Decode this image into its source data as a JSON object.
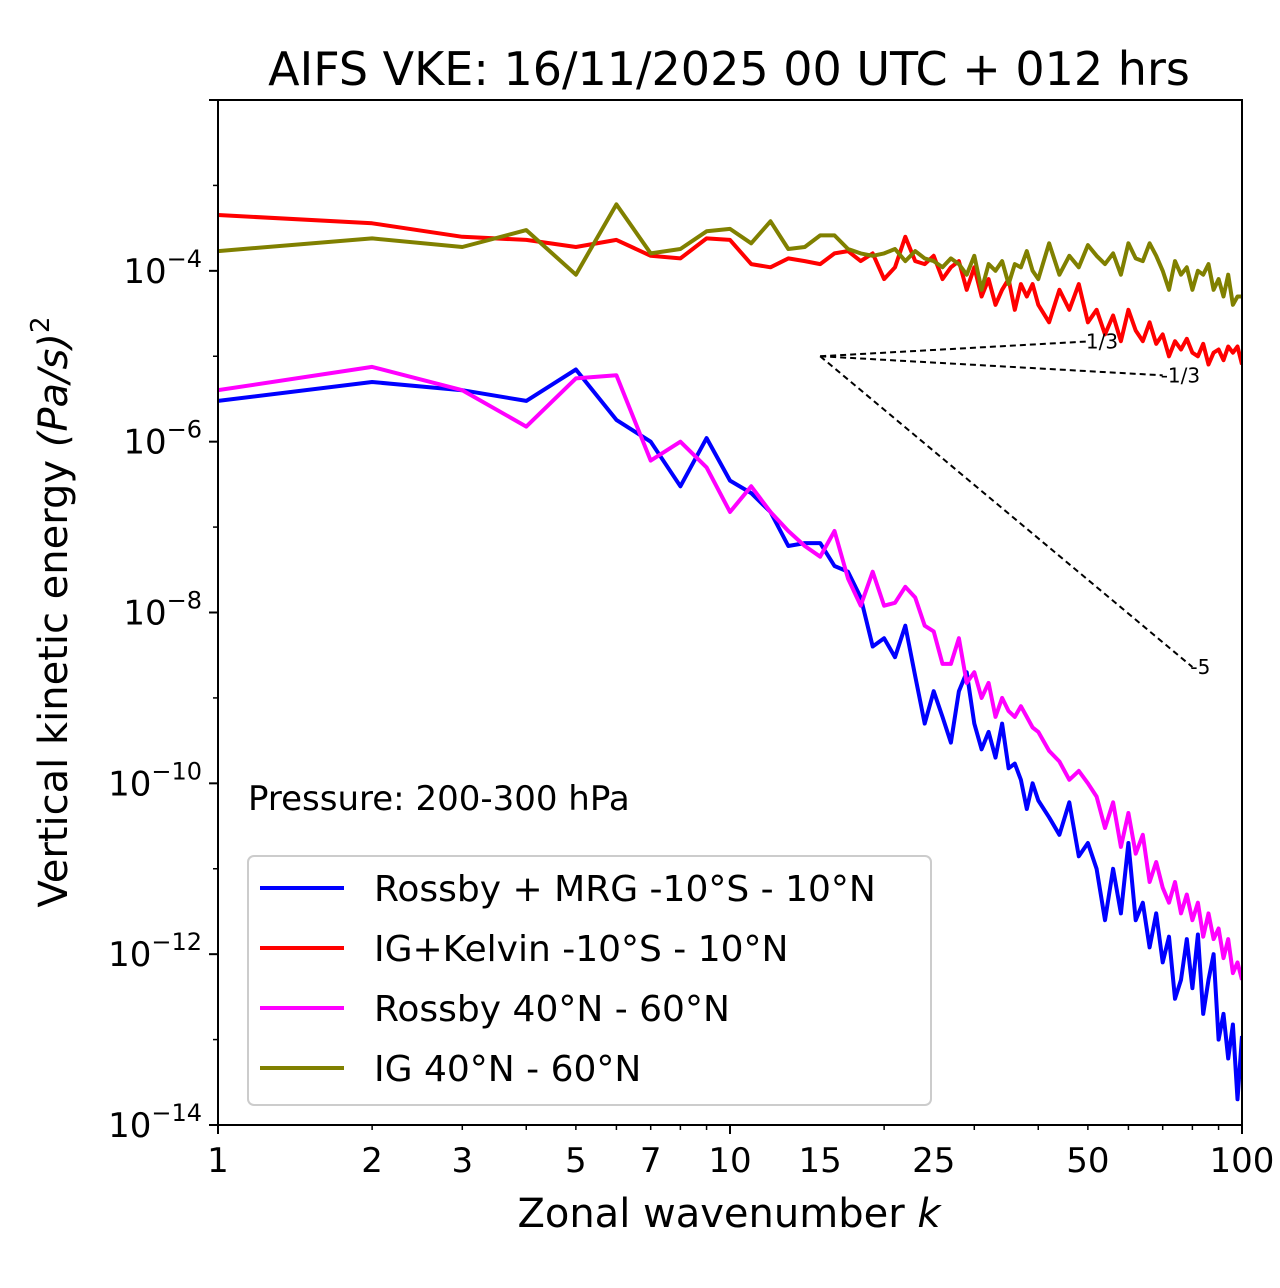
{
  "chart_data": {
    "type": "line",
    "title": "AIFS VKE: 16/11/2025 00 UTC + 012 hrs",
    "xlabel_main": "Zonal wavenumber ",
    "xlabel_italic": "k",
    "ylabel_main": "Vertical kinetic energy ",
    "ylabel_unit": "(Pa/s)",
    "ylabel_sup": "2",
    "xscale": "log",
    "yscale": "log",
    "xlim": [
      1,
      100
    ],
    "ylim": [
      1e-14,
      0.01
    ],
    "xticks": [
      {
        "value": 1,
        "label": "1"
      },
      {
        "value": 2,
        "label": "2"
      },
      {
        "value": 3,
        "label": "3"
      },
      {
        "value": 5,
        "label": "5"
      },
      {
        "value": 7,
        "label": "7"
      },
      {
        "value": 10,
        "label": "10"
      },
      {
        "value": 15,
        "label": "15"
      },
      {
        "value": 25,
        "label": "25"
      },
      {
        "value": 50,
        "label": "50"
      },
      {
        "value": 100,
        "label": "100"
      }
    ],
    "yticks": [
      {
        "value": -4,
        "base": "10",
        "exp": "−4"
      },
      {
        "value": -6,
        "base": "10",
        "exp": "−6"
      },
      {
        "value": -8,
        "base": "10",
        "exp": "−8"
      },
      {
        "value": -10,
        "base": "10",
        "exp": "−10"
      },
      {
        "value": -12,
        "base": "10",
        "exp": "−12"
      },
      {
        "value": -14,
        "base": "10",
        "exp": "−14"
      }
    ],
    "annotation": "Pressure: 200-300 hPa",
    "reference_slopes": [
      {
        "label": "1/3",
        "x0": 15,
        "y0": 1e-05,
        "x1": 50,
        "y1": 1.49e-05
      },
      {
        "label": "-1/3",
        "x0": 15,
        "y0": 1e-05,
        "x1": 70,
        "y1": 5.98e-06
      },
      {
        "label": "-5",
        "x0": 15,
        "y0": 1e-05,
        "x1": 80,
        "y1": 2.3e-09
      }
    ],
    "series": [
      {
        "name": "Rossby + MRG -10°S - 10°N",
        "color": "#0000ff",
        "x": [
          1,
          2,
          3,
          4,
          5,
          6,
          7,
          8,
          9,
          10,
          11,
          12,
          13,
          14,
          15,
          16,
          17,
          18,
          19,
          20,
          21,
          22,
          23,
          24,
          25,
          26,
          27,
          28,
          29,
          30,
          31,
          32,
          33,
          34,
          35,
          36,
          37,
          38,
          39,
          40,
          42,
          44,
          46,
          48,
          50,
          52,
          54,
          56,
          58,
          60,
          62,
          64,
          66,
          68,
          70,
          72,
          74,
          76,
          78,
          80,
          82,
          84,
          86,
          88,
          90,
          92,
          94,
          96,
          98,
          100
        ],
        "y": [
          3e-06,
          5e-06,
          4e-06,
          3e-06,
          7e-06,
          1.8e-06,
          1e-06,
          3e-07,
          1.1e-06,
          3.5e-07,
          2.5e-07,
          1.5e-07,
          6e-08,
          6.5e-08,
          6.5e-08,
          3.5e-08,
          3e-08,
          1.5e-08,
          4e-09,
          5e-09,
          3e-09,
          7e-09,
          1.8e-09,
          5e-10,
          1.2e-09,
          6e-10,
          3e-10,
          1.2e-09,
          2e-09,
          5e-10,
          2.5e-10,
          4e-10,
          2e-10,
          5e-10,
          1.5e-10,
          1.7e-10,
          1.1e-10,
          5e-11,
          1e-10,
          6.3e-11,
          4e-11,
          2.5e-11,
          6e-11,
          1.4e-11,
          2e-11,
          1e-11,
          2.5e-12,
          1e-11,
          3e-12,
          2e-11,
          2.5e-12,
          4e-12,
          1.2e-12,
          3e-12,
          8e-13,
          1.6e-12,
          3e-13,
          5e-13,
          1.5e-12,
          4e-13,
          1.7e-12,
          2e-13,
          5e-13,
          1e-12,
          1e-13,
          2e-13,
          6e-14,
          1.5e-13,
          2e-14,
          1.1e-13
        ]
      },
      {
        "name": "IG+Kelvin -10°S - 10°N",
        "color": "#ff0000",
        "x": [
          1,
          2,
          3,
          4,
          5,
          6,
          7,
          8,
          9,
          10,
          11,
          12,
          13,
          14,
          15,
          16,
          17,
          18,
          19,
          20,
          21,
          22,
          23,
          24,
          25,
          26,
          27,
          28,
          29,
          30,
          31,
          32,
          33,
          34,
          35,
          36,
          37,
          38,
          39,
          40,
          42,
          44,
          46,
          48,
          50,
          52,
          54,
          56,
          58,
          60,
          62,
          64,
          66,
          68,
          70,
          72,
          74,
          76,
          78,
          80,
          82,
          84,
          86,
          88,
          90,
          92,
          94,
          96,
          98,
          100
        ],
        "y": [
          0.00045,
          0.00036,
          0.00025,
          0.00023,
          0.00019,
          0.00023,
          0.00015,
          0.00014,
          0.00024,
          0.00023,
          0.00012,
          0.00011,
          0.00014,
          0.00013,
          0.00012,
          0.00016,
          0.00017,
          0.00013,
          0.00016,
          8e-05,
          0.00011,
          0.00025,
          0.00013,
          0.00012,
          0.00015,
          8e-05,
          0.00011,
          0.00013,
          6e-05,
          0.00011,
          5e-05,
          8e-05,
          4e-05,
          6e-05,
          8e-05,
          3.5e-05,
          7e-05,
          5e-05,
          7e-05,
          4e-05,
          2.5e-05,
          6e-05,
          3.5e-05,
          7e-05,
          2.5e-05,
          3.5e-05,
          1.8e-05,
          3e-05,
          1.5e-05,
          3.5e-05,
          2e-05,
          1.5e-05,
          2.5e-05,
          1.4e-05,
          1.8e-05,
          1e-05,
          1.5e-05,
          1.2e-05,
          1.6e-05,
          1.1e-05,
          1e-05,
          1.4e-05,
          8e-06,
          1.1e-05,
          1.2e-05,
          9e-06,
          1.3e-05,
          1.1e-05,
          1.3e-05,
          8e-06
        ]
      },
      {
        "name": "Rossby 40°N - 60°N",
        "color": "#ff00ff",
        "x": [
          1,
          2,
          3,
          4,
          5,
          6,
          7,
          8,
          9,
          10,
          11,
          12,
          13,
          14,
          15,
          16,
          17,
          18,
          19,
          20,
          21,
          22,
          23,
          24,
          25,
          26,
          27,
          28,
          29,
          30,
          31,
          32,
          33,
          34,
          35,
          36,
          37,
          38,
          39,
          40,
          42,
          44,
          46,
          48,
          50,
          52,
          54,
          56,
          58,
          60,
          62,
          64,
          66,
          68,
          70,
          72,
          74,
          76,
          78,
          80,
          82,
          84,
          86,
          88,
          90,
          92,
          94,
          96,
          98,
          100
        ],
        "y": [
          4e-06,
          7.5e-06,
          4e-06,
          1.5e-06,
          5.5e-06,
          6e-06,
          6e-07,
          1e-06,
          5e-07,
          1.5e-07,
          3e-07,
          1.5e-07,
          9e-08,
          6e-08,
          4.5e-08,
          9e-08,
          2.5e-08,
          1.2e-08,
          3e-08,
          1.2e-08,
          1.3e-08,
          2e-08,
          1.5e-08,
          7e-09,
          6e-09,
          2.5e-09,
          2.5e-09,
          5e-09,
          1.5e-09,
          2e-09,
          1e-09,
          1.5e-09,
          6e-10,
          1e-09,
          7e-10,
          6e-10,
          8e-10,
          6e-10,
          4.5e-10,
          4e-10,
          2.4e-10,
          1.8e-10,
          1.1e-10,
          1.4e-10,
          1e-10,
          7e-11,
          3e-11,
          6e-11,
          1.8e-11,
          4.5e-11,
          1.5e-11,
          2.5e-11,
          7e-12,
          1.2e-11,
          6e-12,
          4e-12,
          7e-12,
          3e-12,
          5e-12,
          2.5e-12,
          4e-12,
          1.6e-12,
          3e-12,
          1.5e-12,
          2e-12,
          9e-13,
          1.5e-12,
          6e-13,
          8e-13,
          5e-13
        ]
      },
      {
        "name": "IG 40°N - 60°N",
        "color": "#808000",
        "x": [
          1,
          2,
          3,
          4,
          5,
          6,
          7,
          8,
          9,
          10,
          11,
          12,
          13,
          14,
          15,
          16,
          17,
          18,
          19,
          20,
          21,
          22,
          23,
          24,
          25,
          26,
          27,
          28,
          29,
          30,
          31,
          32,
          33,
          34,
          35,
          36,
          37,
          38,
          39,
          40,
          42,
          44,
          46,
          48,
          50,
          52,
          54,
          56,
          58,
          60,
          62,
          64,
          66,
          68,
          70,
          72,
          74,
          76,
          78,
          80,
          82,
          84,
          86,
          88,
          90,
          92,
          94,
          96,
          98,
          100
        ],
        "y": [
          0.00017,
          0.00024,
          0.00019,
          0.0003,
          9e-05,
          0.0006,
          0.00016,
          0.00018,
          0.00029,
          0.00031,
          0.00021,
          0.00038,
          0.00018,
          0.00019,
          0.00026,
          0.00026,
          0.00018,
          0.00016,
          0.00015,
          0.00016,
          0.00018,
          0.00013,
          0.00017,
          0.00014,
          0.00013,
          0.00011,
          0.00014,
          0.00012,
          9e-05,
          0.00015,
          6e-05,
          0.00012,
          0.0001,
          0.00013,
          7e-05,
          0.00012,
          0.00011,
          0.00017,
          0.0001,
          8e-05,
          0.00021,
          9e-05,
          0.00015,
          0.00011,
          0.0002,
          0.00015,
          0.00012,
          0.00016,
          9e-05,
          0.00021,
          0.00014,
          0.00013,
          0.00021,
          0.00015,
          0.0001,
          6e-05,
          0.00013,
          9e-05,
          0.00011,
          6e-05,
          0.0001,
          9e-05,
          0.00012,
          6e-05,
          8e-05,
          5e-05,
          9e-05,
          4e-05,
          5e-05,
          5e-05
        ]
      }
    ],
    "legend_position": "lower-left"
  }
}
